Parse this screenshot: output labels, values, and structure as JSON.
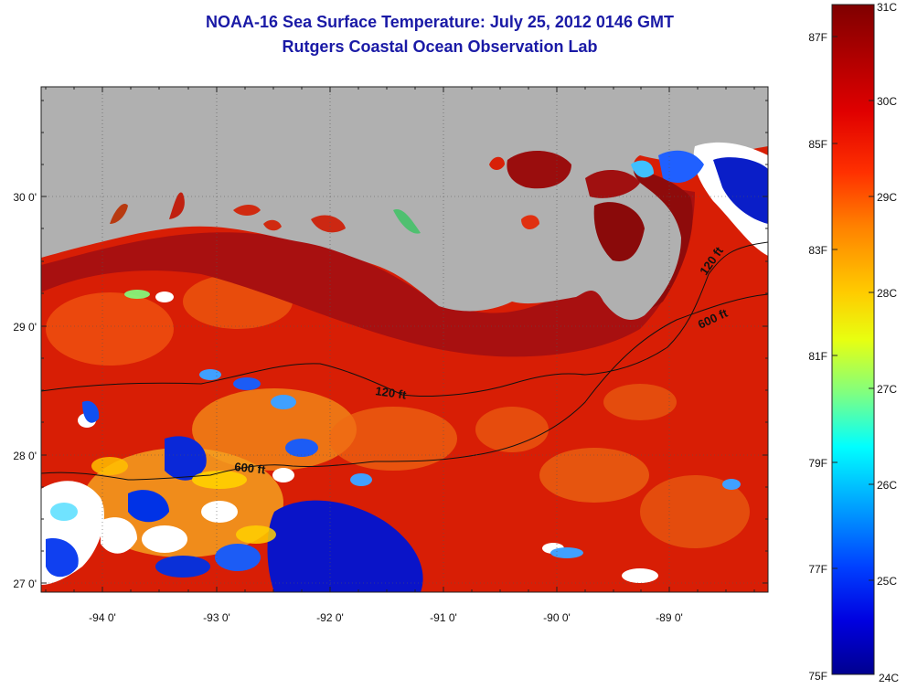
{
  "title": {
    "line1": "NOAA-16 Sea Surface Temperature:  July 25, 2012 0146 GMT",
    "line2": "Rutgers Coastal Ocean Observation Lab"
  },
  "map": {
    "longitude_labels": [
      "-94 0'",
      "-93 0'",
      "-92 0'",
      "-91 0'",
      "-90 0'",
      "-89 0'"
    ],
    "latitude_labels": [
      "30 0'",
      "29 0'",
      "28 0'",
      "27 0'"
    ],
    "contour_labels": [
      "120 ft",
      "600 ft",
      "120 ft",
      "600 ft"
    ],
    "colors": {
      "land": "#b0b0b0",
      "cloud": "#ffffff",
      "warm": "#d81e05",
      "coastal": "#9a0d0d"
    }
  },
  "colorbar": {
    "celsius_labels": [
      "31C",
      "30C",
      "29C",
      "28C",
      "27C",
      "26C",
      "25C",
      "24C"
    ],
    "fahrenheit_labels": [
      "87F",
      "85F",
      "83F",
      "81F",
      "79F",
      "77F",
      "75F"
    ],
    "colors": [
      "#7f0000",
      "#cc0000",
      "#ff3300",
      "#ff8000",
      "#ffcc00",
      "#ffff00",
      "#80ff80",
      "#00ffff",
      "#0080ff",
      "#0000ff",
      "#00008f"
    ]
  }
}
